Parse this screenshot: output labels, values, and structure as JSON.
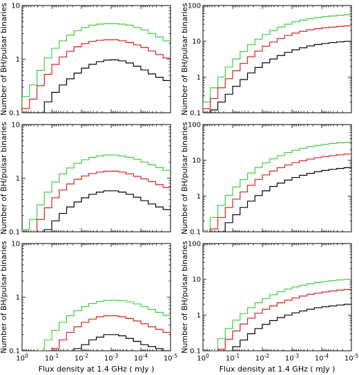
{
  "chart_data": {
    "type": "line",
    "xlabel": "Flux density at 1.4 GHz ( mJy )",
    "ylabel": "Number of BH/pulsar binaries",
    "x_axis": {
      "scale": "log",
      "reversed": true,
      "xlim": [
        1,
        1e-05
      ],
      "tick_labels": [
        "10^0",
        "10^-1",
        "10^-2",
        "10^-3",
        "10^-4",
        "10^-5"
      ]
    },
    "layout": "3 rows x 2 columns",
    "x_bin_edges": [
      1,
      0.5623,
      0.3162,
      0.1778,
      0.1,
      0.05623,
      0.03162,
      0.01778,
      0.01,
      0.005623,
      0.003162,
      0.001778,
      0.001,
      0.0005623,
      0.0003162,
      0.0001778,
      0.0001,
      5.623e-05,
      3.162e-05,
      1.778e-05,
      1e-05
    ],
    "colors": {
      "green": "#3ccf3c",
      "red": "#d42020",
      "black": "#000000"
    },
    "panels": [
      {
        "position": "row1-left",
        "ylim": [
          0.1,
          10
        ],
        "y_tick_labels": [
          "0.1",
          "1",
          "10"
        ],
        "series": [
          {
            "color": "green",
            "values": [
              0.2,
              0.33,
              0.62,
              1.05,
              1.6,
              2.2,
              2.8,
              3.4,
              3.9,
              4.3,
              4.5,
              4.6,
              4.6,
              4.5,
              4.3,
              3.9,
              3.5,
              3.0,
              2.6,
              2.2
            ]
          },
          {
            "color": "red",
            "values": [
              0.12,
              0.18,
              0.32,
              0.52,
              0.8,
              1.1,
              1.4,
              1.7,
              1.95,
              2.15,
              2.25,
              2.3,
              2.3,
              2.2,
              2.05,
              1.85,
              1.65,
              1.42,
              1.22,
              1.05
            ]
          },
          {
            "color": "black",
            "values": [
              null,
              null,
              0.1,
              0.16,
              0.24,
              0.33,
              0.43,
              0.55,
              0.68,
              0.8,
              0.9,
              0.96,
              0.97,
              0.93,
              0.85,
              0.74,
              0.63,
              0.53,
              0.46,
              0.4
            ]
          }
        ]
      },
      {
        "position": "row1-right",
        "ylim": [
          0.1,
          100
        ],
        "y_tick_labels": [
          "0.1",
          "1",
          "10",
          "100"
        ],
        "series": [
          {
            "color": "green",
            "values": [
              0.2,
              0.5,
              1.0,
              1.9,
              3.2,
              5.2,
              8.0,
              11.5,
              15.5,
              20,
              25,
              30,
              35,
              39,
              43,
              46,
              49,
              51,
              53,
              55
            ]
          },
          {
            "color": "red",
            "values": [
              0.13,
              0.25,
              0.5,
              0.9,
              1.5,
              2.4,
              3.7,
              5.3,
              7.3,
              9.5,
              12,
              14.5,
              17,
              19,
              21,
              22.5,
              24,
              25,
              26,
              27
            ]
          },
          {
            "color": "black",
            "values": [
              null,
              0.12,
              0.2,
              0.33,
              0.55,
              0.85,
              1.3,
              1.85,
              2.5,
              3.2,
              4.0,
              4.9,
              5.8,
              6.6,
              7.4,
              8.1,
              8.7,
              9.2,
              9.6,
              10
            ]
          }
        ]
      },
      {
        "position": "row2-left",
        "ylim": [
          0.1,
          10
        ],
        "y_tick_labels": [
          "0.1",
          "1",
          "10"
        ],
        "series": [
          {
            "color": "green",
            "values": [
              0.11,
              0.17,
              0.32,
              0.55,
              0.85,
              1.2,
              1.55,
              1.9,
              2.2,
              2.45,
              2.6,
              2.7,
              2.7,
              2.6,
              2.45,
              2.25,
              2.0,
              1.78,
              1.58,
              1.4
            ]
          },
          {
            "color": "red",
            "values": [
              null,
              0.1,
              0.17,
              0.28,
              0.43,
              0.6,
              0.78,
              0.95,
              1.1,
              1.22,
              1.3,
              1.35,
              1.35,
              1.3,
              1.2,
              1.08,
              0.97,
              0.86,
              0.76,
              0.67
            ]
          },
          {
            "color": "black",
            "values": [
              null,
              null,
              null,
              0.11,
              0.16,
              0.22,
              0.29,
              0.36,
              0.43,
              0.5,
              0.55,
              0.58,
              0.58,
              0.55,
              0.5,
              0.44,
              0.38,
              0.33,
              0.29,
              0.26
            ]
          }
        ]
      },
      {
        "position": "row2-right",
        "ylim": [
          0.1,
          100
        ],
        "y_tick_labels": [
          "0.1",
          "1",
          "10",
          "100"
        ],
        "series": [
          {
            "color": "green",
            "values": [
              0.1,
              0.25,
              0.55,
              1.05,
              1.8,
              2.9,
              4.4,
              6.3,
              8.5,
              11,
              13.5,
              16.5,
              19,
              21.5,
              24,
              26,
              28,
              29.5,
              31,
              32
            ]
          },
          {
            "color": "red",
            "values": [
              null,
              0.12,
              0.25,
              0.48,
              0.82,
              1.3,
              2.0,
              2.9,
              3.9,
              5.0,
              6.2,
              7.4,
              8.6,
              9.7,
              10.8,
              11.8,
              12.7,
              13.5,
              14.2,
              15
            ]
          },
          {
            "color": "black",
            "values": [
              null,
              null,
              0.1,
              0.18,
              0.3,
              0.48,
              0.72,
              1.03,
              1.4,
              1.85,
              2.3,
              2.8,
              3.3,
              3.8,
              4.3,
              4.8,
              5.2,
              5.6,
              5.9,
              6.2
            ]
          }
        ]
      },
      {
        "position": "row3-left",
        "ylim": [
          0.1,
          10
        ],
        "y_tick_labels": [
          "0.1",
          "1",
          "10"
        ],
        "series": [
          {
            "color": "green",
            "values": [
              null,
              null,
              0.1,
              0.16,
              0.24,
              0.34,
              0.45,
              0.56,
              0.67,
              0.76,
              0.83,
              0.87,
              0.88,
              0.86,
              0.82,
              0.75,
              0.67,
              0.59,
              0.52,
              0.46
            ]
          },
          {
            "color": "red",
            "values": [
              null,
              null,
              null,
              null,
              0.11,
              0.16,
              0.22,
              0.28,
              0.34,
              0.39,
              0.43,
              0.45,
              0.45,
              0.43,
              0.4,
              0.36,
              0.32,
              0.28,
              0.25,
              0.22
            ]
          },
          {
            "color": "black",
            "values": [
              null,
              null,
              null,
              null,
              null,
              null,
              null,
              0.11,
              0.13,
              0.16,
              0.18,
              0.2,
              0.2,
              0.19,
              0.17,
              0.15,
              0.13,
              0.12,
              0.11,
              0.1
            ]
          }
        ]
      },
      {
        "position": "row3-right",
        "ylim": [
          0.1,
          100
        ],
        "y_tick_labels": [
          "0.1",
          "1",
          "10",
          "100"
        ],
        "series": [
          {
            "color": "green",
            "values": [
              null,
              0.1,
              0.22,
              0.42,
              0.72,
              1.1,
              1.6,
              2.2,
              2.9,
              3.7,
              4.5,
              5.3,
              6.1,
              6.8,
              7.5,
              8.1,
              8.7,
              9.2,
              9.6,
              10
            ]
          },
          {
            "color": "red",
            "values": [
              null,
              null,
              0.11,
              0.21,
              0.36,
              0.56,
              0.82,
              1.12,
              1.45,
              1.8,
              2.2,
              2.6,
              3.0,
              3.4,
              3.8,
              4.1,
              4.4,
              4.7,
              5.0,
              5.2
            ]
          },
          {
            "color": "black",
            "values": [
              null,
              null,
              null,
              null,
              0.13,
              0.2,
              0.3,
              0.42,
              0.55,
              0.7,
              0.85,
              1.0,
              1.15,
              1.3,
              1.45,
              1.6,
              1.7,
              1.8,
              1.9,
              2.0
            ]
          }
        ]
      }
    ]
  }
}
